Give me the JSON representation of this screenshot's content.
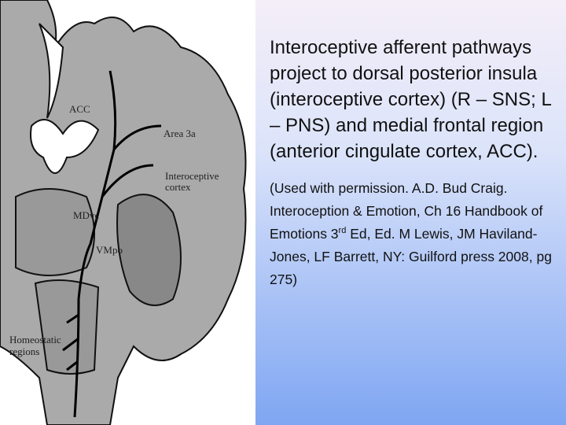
{
  "figure": {
    "labels": {
      "acc": "ACC",
      "area3a": "Area 3a",
      "interoceptive": [
        "Interoceptive",
        "cortex"
      ],
      "mdvc": "MDvc",
      "vmpo": "VMpo",
      "homeostatic": [
        "Homeostatic",
        "regions"
      ]
    }
  },
  "main_text": "Interoceptive afferent pathways project to dorsal posterior insula (interoceptive cortex) (R – SNS; L – PNS) and medial frontal region (anterior cingulate cortex, ACC).",
  "citation": {
    "before": "(Used with permission. A.D. Bud Craig. Interoception & Emotion, Ch 16 Handbook of Emotions 3",
    "superscript": "rd",
    "after": " Ed, Ed. M Lewis, JM Haviland-Jones, LF Barrett, NY: Guilford press 2008, pg 275)"
  }
}
